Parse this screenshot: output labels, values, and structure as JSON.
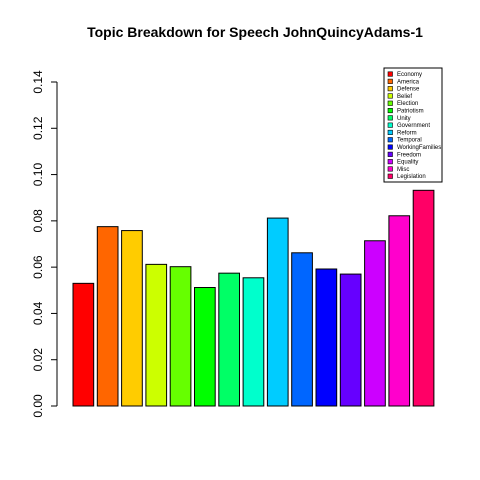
{
  "chart_data": {
    "type": "bar",
    "title": "Topic Breakdown for Speech JohnQuincyAdams-1",
    "xlabel": "",
    "ylabel": "",
    "ylim": [
      0,
      0.14
    ],
    "yticks": [
      "0.00",
      "0.02",
      "0.04",
      "0.06",
      "0.08",
      "0.10",
      "0.12",
      "0.14"
    ],
    "ytick_values": [
      0,
      0.02,
      0.04,
      0.06,
      0.08,
      0.1,
      0.12,
      0.14
    ],
    "grid": false,
    "legend_position": "top-right",
    "categories": [
      "Economy",
      "America",
      "Defense",
      "Belief",
      "Election",
      "Patriotism",
      "Unity",
      "Government",
      "Reform",
      "Temporal",
      "WorkingFamilies",
      "Freedom",
      "Equality",
      "Misc",
      "Legislation"
    ],
    "values": [
      0.053,
      0.0775,
      0.0758,
      0.0612,
      0.0602,
      0.0512,
      0.0574,
      0.0554,
      0.0812,
      0.0662,
      0.0592,
      0.057,
      0.0714,
      0.0822,
      0.0932
    ],
    "colors": [
      "#FF0000",
      "#FF6600",
      "#FFCC00",
      "#CCFF00",
      "#66FF00",
      "#00FF00",
      "#00FF66",
      "#00FFCC",
      "#00CCFF",
      "#0066FF",
      "#0000FF",
      "#6600FF",
      "#CC00FF",
      "#FF00CC",
      "#FF0066"
    ]
  }
}
